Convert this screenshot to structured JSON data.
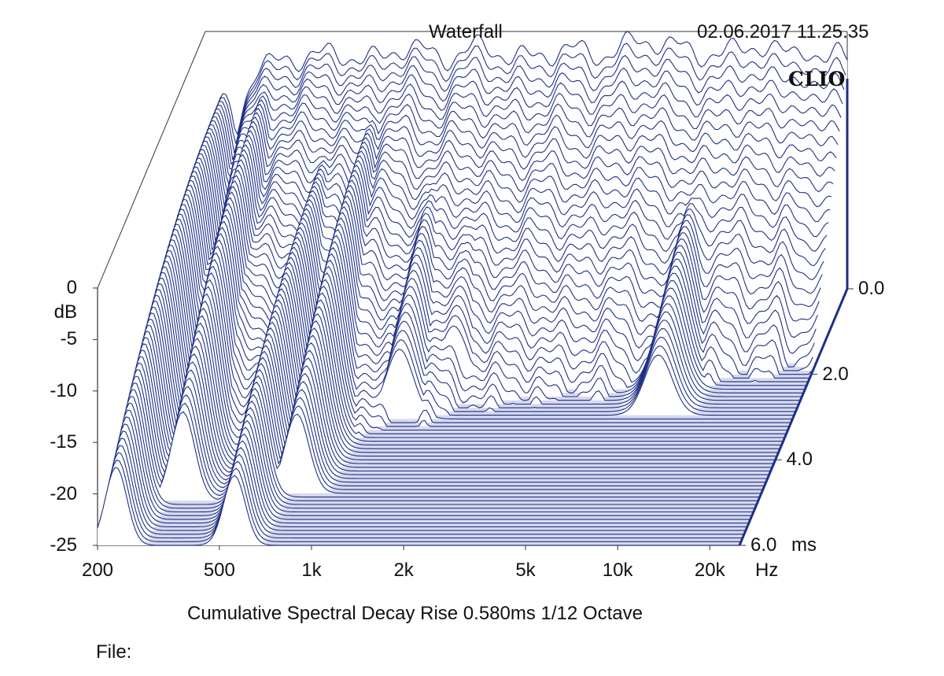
{
  "header": {
    "title": "Waterfall",
    "timestamp": "02.06.2017 11.25.35",
    "brand": "CLIO"
  },
  "caption": "Cumulative Spectral Decay   Rise 0.580ms   1/12 Octave",
  "file_label": "File:",
  "colors": {
    "trace": "#1f2f86",
    "floor": "#8a92c8",
    "axis": "#333333"
  },
  "chart_data": {
    "type": "waterfall",
    "title": "Waterfall",
    "x_unit": "Hz",
    "y_unit": "dB",
    "z_unit": "ms",
    "x_ticks": [
      "200",
      "500",
      "1k",
      "2k",
      "5k",
      "10k",
      "20k"
    ],
    "x_tick_values": [
      200,
      500,
      1000,
      2000,
      5000,
      10000,
      20000
    ],
    "y_ticks": [
      "0",
      "-5",
      "-10",
      "-15",
      "-20",
      "-25"
    ],
    "y_tick_values": [
      0,
      -5,
      -10,
      -15,
      -20,
      -25
    ],
    "z_ticks": [
      "0.0",
      "2.0",
      "4.0",
      "6.0"
    ],
    "z_tick_values": [
      0,
      2,
      4,
      6
    ],
    "x_range": [
      200,
      25000
    ],
    "y_range": [
      -25,
      0
    ],
    "z_range": [
      0,
      6
    ],
    "x_scale": "log",
    "rise_ms": 0.58,
    "smoothing": "1/12 Octave",
    "front_response_db": [
      [
        230,
        -12
      ],
      [
        300,
        -3.5
      ],
      [
        400,
        -2.5
      ],
      [
        550,
        -2.2
      ],
      [
        700,
        -2.8
      ],
      [
        900,
        -1.5
      ],
      [
        1200,
        -2.5
      ],
      [
        1600,
        -1.6
      ],
      [
        2200,
        -2.6
      ],
      [
        3000,
        -1.8
      ],
      [
        4000,
        -2.2
      ],
      [
        5500,
        -0.8
      ],
      [
        7000,
        -1.6
      ],
      [
        9500,
        -2.4
      ],
      [
        12000,
        -1.2
      ],
      [
        15000,
        -2.2
      ],
      [
        18000,
        -1.4
      ],
      [
        21000,
        -3.4
      ],
      [
        24000,
        -1.8
      ]
    ],
    "resonance_peaks": [
      {
        "freq": 230,
        "db": -6,
        "decay_ms": 6.0
      },
      {
        "freq": 330,
        "db": -4,
        "decay_ms": 5.0
      },
      {
        "freq": 560,
        "db": -8,
        "decay_ms": 6.0
      },
      {
        "freq": 760,
        "db": -6,
        "decay_ms": 4.8
      },
      {
        "freq": 1300,
        "db": -9,
        "decay_ms": 3.1
      },
      {
        "freq": 1800,
        "db": -10,
        "decay_ms": 2.5
      },
      {
        "freq": 9000,
        "db": -11,
        "decay_ms": 3.0
      },
      {
        "freq": 16000,
        "db": -12,
        "decay_ms": 0.6
      }
    ]
  }
}
